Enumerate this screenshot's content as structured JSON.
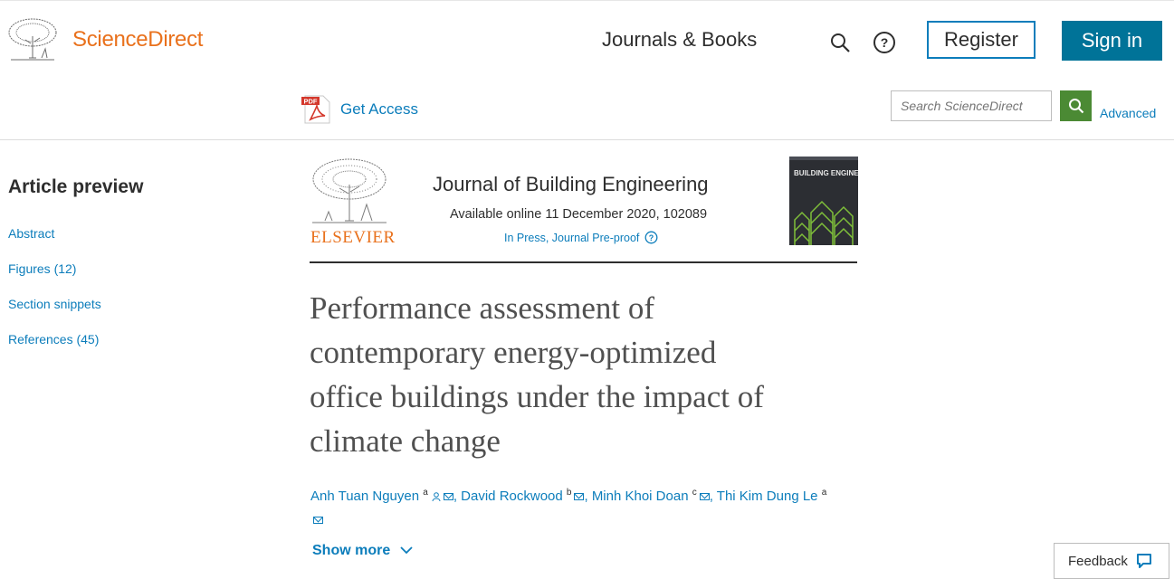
{
  "header": {
    "brand": "ScienceDirect",
    "nav_journals": "Journals & Books",
    "register_label": "Register",
    "signin_label": "Sign in",
    "get_access_label": "Get Access",
    "search_placeholder": "Search ScienceDirect",
    "advanced_label": "Advanced"
  },
  "sidebar": {
    "title": "Article preview",
    "items": [
      {
        "label": "Abstract"
      },
      {
        "label": "Figures (12)"
      },
      {
        "label": "Section snippets"
      },
      {
        "label": "References (45)"
      }
    ]
  },
  "journal": {
    "publisher": "ELSEVIER",
    "name": "Journal of Building Engineering",
    "available": "Available online 11 December 2020, 102089",
    "status": "In Press, Journal Pre-proof",
    "cover_text": "BUILDING ENGINEERING"
  },
  "article": {
    "title_lines": [
      "Performance assessment of",
      "contemporary energy-optimized",
      "office buildings under the impact of",
      "climate change"
    ],
    "authors": [
      {
        "name": "Anh Tuan Nguyen",
        "sup": "a"
      },
      {
        "name": "David Rockwood",
        "sup": "b"
      },
      {
        "name": "Minh Khoi Doan",
        "sup": "c"
      },
      {
        "name": "Thi Kim Dung Le",
        "sup": "a"
      }
    ],
    "show_more": "Show more"
  },
  "feedback_label": "Feedback",
  "colors": {
    "brand_orange": "#e9711c",
    "link_blue": "#0c7dbb",
    "signin_bg": "#007398",
    "search_green": "#4b8a34"
  }
}
